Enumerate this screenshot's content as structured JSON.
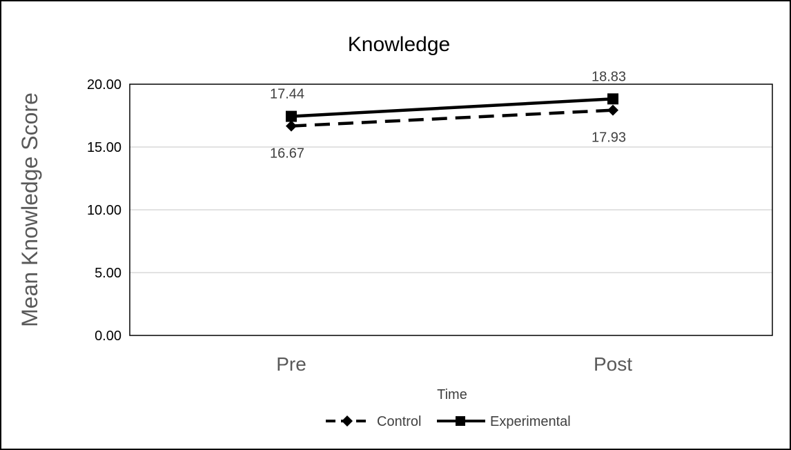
{
  "chart_data": {
    "type": "line",
    "title": "Knowledge",
    "xlabel": "Time",
    "ylabel": "Mean Knowledge Score",
    "categories": [
      "Pre",
      "Post"
    ],
    "ylim": [
      0,
      20
    ],
    "yticks": [
      "0.00",
      "5.00",
      "10.00",
      "15.00",
      "20.00"
    ],
    "grid": true,
    "legend_position": "bottom",
    "series": [
      {
        "name": "Control",
        "values": [
          16.67,
          17.93
        ],
        "labels": [
          "16.67",
          "17.93"
        ],
        "line_style": "dashed",
        "marker": "diamond",
        "color": "#000000"
      },
      {
        "name": "Experimental",
        "values": [
          17.44,
          18.83
        ],
        "labels": [
          "17.44",
          "18.83"
        ],
        "line_style": "solid",
        "marker": "square",
        "color": "#000000"
      }
    ]
  }
}
